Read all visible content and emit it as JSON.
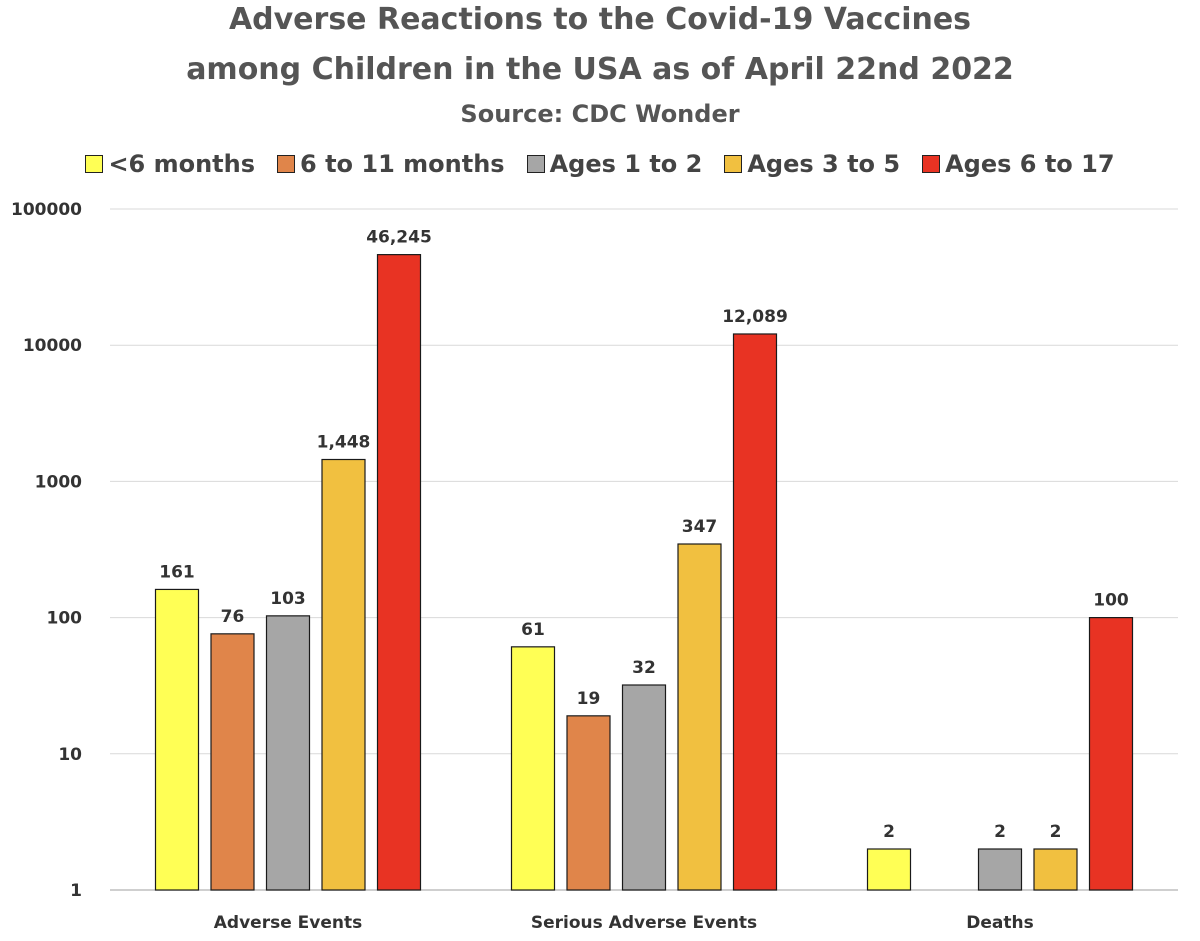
{
  "chart_data": {
    "type": "bar",
    "title": "Adverse Reactions to the Covid-19 Vaccines",
    "subtitle": "among Children in the USA as of April 22nd 2022",
    "source": "Source:  CDC Wonder",
    "yscale": "log",
    "ylim": [
      1,
      100000
    ],
    "yticks": [
      "1",
      "10",
      "100",
      "1000",
      "10000",
      "100000"
    ],
    "categories": [
      "Adverse Events",
      "Serious Adverse Events",
      "Deaths"
    ],
    "legend_placement": "top",
    "grid": true,
    "series": [
      {
        "name": "<6 months",
        "color": "#ffff55",
        "values": [
          161,
          61,
          2
        ],
        "labels": [
          "161",
          "61",
          "2"
        ]
      },
      {
        "name": "6 to 11 months",
        "color": "#e0854a",
        "values": [
          76,
          19,
          null
        ],
        "labels": [
          "76",
          "19",
          ""
        ]
      },
      {
        "name": "Ages 1 to 2",
        "color": "#a6a6a6",
        "values": [
          103,
          32,
          2
        ],
        "labels": [
          "103",
          "32",
          "2"
        ]
      },
      {
        "name": "Ages 3 to 5",
        "color": "#f1c040",
        "values": [
          1448,
          347,
          2
        ],
        "labels": [
          "1,448",
          "347",
          "2"
        ]
      },
      {
        "name": "Ages 6 to 17",
        "color": "#e83323",
        "values": [
          46245,
          12089,
          100
        ],
        "labels": [
          "46,245",
          "12,089",
          "100"
        ]
      }
    ]
  }
}
